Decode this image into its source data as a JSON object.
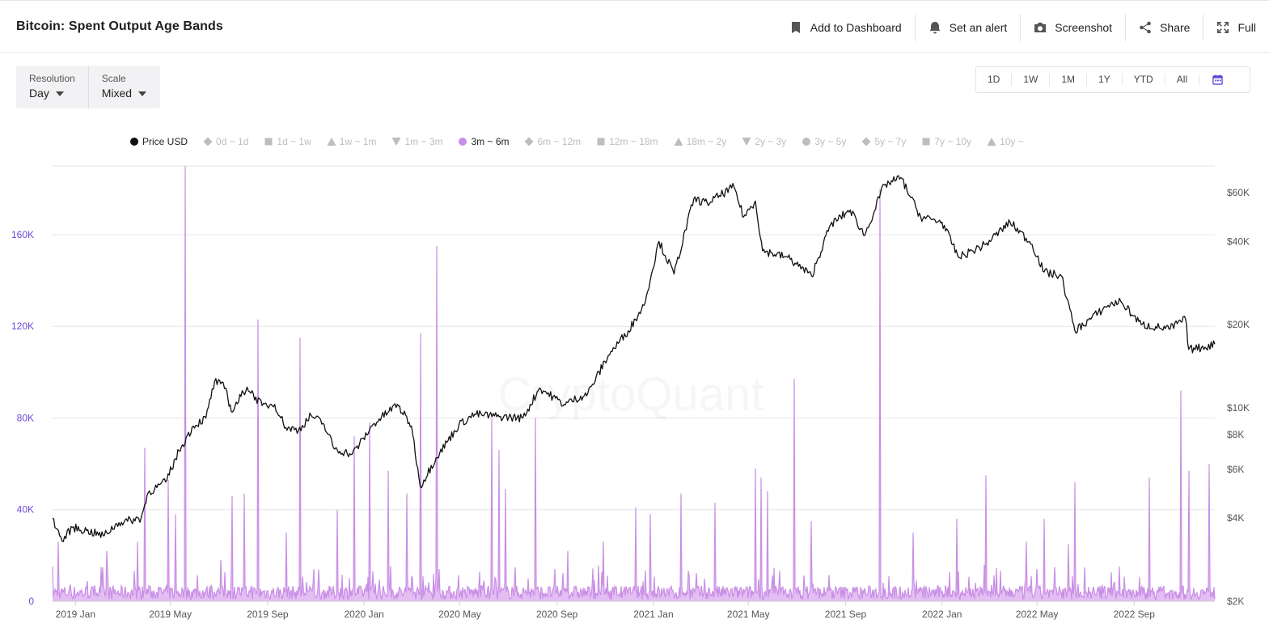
{
  "header": {
    "title": "Bitcoin: Spent Output Age Bands",
    "actions": [
      {
        "label": "Add to Dashboard",
        "icon": "bookmark-icon"
      },
      {
        "label": "Set an alert",
        "icon": "bell-icon"
      },
      {
        "label": "Screenshot",
        "icon": "camera-icon"
      },
      {
        "label": "Share",
        "icon": "share-icon"
      },
      {
        "label": "Full",
        "icon": "expand-icon"
      }
    ]
  },
  "controls": {
    "resolution": {
      "label": "Resolution",
      "value": "Day"
    },
    "scale": {
      "label": "Scale",
      "value": "Mixed"
    }
  },
  "ranges": [
    "1D",
    "1W",
    "1M",
    "1Y",
    "YTD",
    "All"
  ],
  "legend": [
    {
      "label": "Price USD",
      "shape": "circle",
      "color": "#111111",
      "active": true
    },
    {
      "label": "0d ~ 1d",
      "shape": "diamond",
      "color": "#bdbdbd",
      "active": false
    },
    {
      "label": "1d ~ 1w",
      "shape": "square",
      "color": "#bdbdbd",
      "active": false
    },
    {
      "label": "1w ~ 1m",
      "shape": "triangle",
      "color": "#bdbdbd",
      "active": false
    },
    {
      "label": "1m ~ 3m",
      "shape": "triangle-down",
      "color": "#bdbdbd",
      "active": false
    },
    {
      "label": "3m ~ 6m",
      "shape": "circle",
      "color": "#c98ee6",
      "active": true
    },
    {
      "label": "6m ~ 12m",
      "shape": "diamond",
      "color": "#bdbdbd",
      "active": false
    },
    {
      "label": "12m ~ 18m",
      "shape": "square",
      "color": "#bdbdbd",
      "active": false
    },
    {
      "label": "18m ~ 2y",
      "shape": "triangle",
      "color": "#bdbdbd",
      "active": false
    },
    {
      "label": "2y ~ 3y",
      "shape": "triangle-down",
      "color": "#bdbdbd",
      "active": false
    },
    {
      "label": "3y ~ 5y",
      "shape": "circle",
      "color": "#bdbdbd",
      "active": false
    },
    {
      "label": "5y ~ 7y",
      "shape": "diamond",
      "color": "#bdbdbd",
      "active": false
    },
    {
      "label": "7y ~ 10y",
      "shape": "square",
      "color": "#bdbdbd",
      "active": false
    },
    {
      "label": "10y ~",
      "shape": "triangle",
      "color": "#bdbdbd",
      "active": false
    }
  ],
  "colors": {
    "accent": "#6a4bd4",
    "band": "#c98ee6",
    "band_fill": "#d9a8ee",
    "price": "#111111",
    "grid": "#e6e6e6"
  },
  "chart_data": {
    "type": "line",
    "watermark": "CryptoQuant",
    "x_range": [
      "2018-12-03",
      "2022-12-12"
    ],
    "x_ticks": [
      {
        "date": "2019-01-01",
        "label": "2019 Jan"
      },
      {
        "date": "2019-05-01",
        "label": "2019 May"
      },
      {
        "date": "2019-09-01",
        "label": "2019 Sep"
      },
      {
        "date": "2020-01-01",
        "label": "2020 Jan"
      },
      {
        "date": "2020-05-01",
        "label": "2020 May"
      },
      {
        "date": "2020-09-01",
        "label": "2020 Sep"
      },
      {
        "date": "2021-01-01",
        "label": "2021 Jan"
      },
      {
        "date": "2021-05-01",
        "label": "2021 May"
      },
      {
        "date": "2021-09-01",
        "label": "2021 Sep"
      },
      {
        "date": "2022-01-01",
        "label": "2022 Jan"
      },
      {
        "date": "2022-05-01",
        "label": "2022 May"
      },
      {
        "date": "2022-09-01",
        "label": "2022 Sep"
      }
    ],
    "y_left": {
      "scale": "linear",
      "range": [
        0,
        190000
      ],
      "ticks": [
        0,
        40000,
        80000,
        120000,
        160000
      ],
      "tick_labels": [
        "0",
        "40K",
        "80K",
        "120K",
        "160K"
      ]
    },
    "y_right": {
      "scale": "log",
      "range": [
        2000,
        75000
      ],
      "ticks": [
        2000,
        4000,
        6000,
        8000,
        10000,
        20000,
        40000,
        60000
      ],
      "tick_labels": [
        "$2K",
        "$4K",
        "$6K",
        "$8K",
        "$10K",
        "$20K",
        "$40K",
        "$60K"
      ]
    },
    "series": [
      {
        "name": "Price USD",
        "axis": "right",
        "points": [
          [
            "2018-12-03",
            4000
          ],
          [
            "2018-12-15",
            3300
          ],
          [
            "2018-12-28",
            3700
          ],
          [
            "2019-01-15",
            3600
          ],
          [
            "2019-02-05",
            3450
          ],
          [
            "2019-02-25",
            3850
          ],
          [
            "2019-03-25",
            4000
          ],
          [
            "2019-04-03",
            4950
          ],
          [
            "2019-04-25",
            5400
          ],
          [
            "2019-05-12",
            7000
          ],
          [
            "2019-05-30",
            8600
          ],
          [
            "2019-06-15",
            9200
          ],
          [
            "2019-06-26",
            12500
          ],
          [
            "2019-07-10",
            11800
          ],
          [
            "2019-07-17",
            9700
          ],
          [
            "2019-08-06",
            11900
          ],
          [
            "2019-08-25",
            10200
          ],
          [
            "2019-09-10",
            10300
          ],
          [
            "2019-09-24",
            8500
          ],
          [
            "2019-10-10",
            8300
          ],
          [
            "2019-10-26",
            9400
          ],
          [
            "2019-11-10",
            8800
          ],
          [
            "2019-11-25",
            7100
          ],
          [
            "2019-12-17",
            6800
          ],
          [
            "2020-01-14",
            8800
          ],
          [
            "2020-02-12",
            10300
          ],
          [
            "2020-03-01",
            8600
          ],
          [
            "2020-03-12",
            5200
          ],
          [
            "2020-04-01",
            6600
          ],
          [
            "2020-04-30",
            8700
          ],
          [
            "2020-05-20",
            9500
          ],
          [
            "2020-06-20",
            9300
          ],
          [
            "2020-07-20",
            9200
          ],
          [
            "2020-08-10",
            11800
          ],
          [
            "2020-09-10",
            10300
          ],
          [
            "2020-10-10",
            11300
          ],
          [
            "2020-11-05",
            15500
          ],
          [
            "2020-11-30",
            19000
          ],
          [
            "2020-12-20",
            23500
          ],
          [
            "2021-01-08",
            40000
          ],
          [
            "2021-01-27",
            30500
          ],
          [
            "2021-02-21",
            57000
          ],
          [
            "2021-03-10",
            55000
          ],
          [
            "2021-04-13",
            63000
          ],
          [
            "2021-04-25",
            49000
          ],
          [
            "2021-05-10",
            56000
          ],
          [
            "2021-05-19",
            37000
          ],
          [
            "2021-06-20",
            35000
          ],
          [
            "2021-07-20",
            30000
          ],
          [
            "2021-08-13",
            46000
          ],
          [
            "2021-09-07",
            52000
          ],
          [
            "2021-09-25",
            42000
          ],
          [
            "2021-10-20",
            64000
          ],
          [
            "2021-11-10",
            68000
          ],
          [
            "2021-12-05",
            49000
          ],
          [
            "2022-01-01",
            47000
          ],
          [
            "2022-01-22",
            35000
          ],
          [
            "2022-02-25",
            39000
          ],
          [
            "2022-03-28",
            47000
          ],
          [
            "2022-04-25",
            39000
          ],
          [
            "2022-05-10",
            31000
          ],
          [
            "2022-06-01",
            30000
          ],
          [
            "2022-06-18",
            19000
          ],
          [
            "2022-07-30",
            23500
          ],
          [
            "2022-08-15",
            24300
          ],
          [
            "2022-09-10",
            20000
          ],
          [
            "2022-10-15",
            19300
          ],
          [
            "2022-11-05",
            21000
          ],
          [
            "2022-11-09",
            16300
          ],
          [
            "2022-11-25",
            16500
          ],
          [
            "2022-12-12",
            17000
          ]
        ]
      },
      {
        "name": "3m ~ 6m",
        "axis": "left",
        "spikes": [
          [
            "2018-12-10",
            26000
          ],
          [
            "2019-02-10",
            22000
          ],
          [
            "2019-03-20",
            26000
          ],
          [
            "2019-03-30",
            67000
          ],
          [
            "2019-04-28",
            53000
          ],
          [
            "2019-05-08",
            38000
          ],
          [
            "2019-05-20",
            190000
          ],
          [
            "2019-07-04",
            18000
          ],
          [
            "2019-07-18",
            46000
          ],
          [
            "2019-08-02",
            47000
          ],
          [
            "2019-08-20",
            123000
          ],
          [
            "2019-09-25",
            30000
          ],
          [
            "2019-10-12",
            115000
          ],
          [
            "2019-11-28",
            40000
          ],
          [
            "2019-12-20",
            72000
          ],
          [
            "2020-01-08",
            78000
          ],
          [
            "2020-02-01",
            57000
          ],
          [
            "2020-02-24",
            47000
          ],
          [
            "2020-03-12",
            117000
          ],
          [
            "2020-04-02",
            155000
          ],
          [
            "2020-06-10",
            80000
          ],
          [
            "2020-06-20",
            66000
          ],
          [
            "2020-06-28",
            49000
          ],
          [
            "2020-08-05",
            80000
          ],
          [
            "2020-09-15",
            22000
          ],
          [
            "2020-10-30",
            26000
          ],
          [
            "2020-12-10",
            41000
          ],
          [
            "2020-12-28",
            38000
          ],
          [
            "2021-02-05",
            47000
          ],
          [
            "2021-03-20",
            43000
          ],
          [
            "2021-05-10",
            58000
          ],
          [
            "2021-05-17",
            54000
          ],
          [
            "2021-05-25",
            48000
          ],
          [
            "2021-06-28",
            97000
          ],
          [
            "2021-07-20",
            35000
          ],
          [
            "2021-10-15",
            180000
          ],
          [
            "2021-11-25",
            30000
          ],
          [
            "2022-01-20",
            36000
          ],
          [
            "2022-02-25",
            55000
          ],
          [
            "2022-04-18",
            26000
          ],
          [
            "2022-05-10",
            36000
          ],
          [
            "2022-06-10",
            25000
          ],
          [
            "2022-06-18",
            52000
          ],
          [
            "2022-09-20",
            54000
          ],
          [
            "2022-10-30",
            92000
          ],
          [
            "2022-11-09",
            57000
          ],
          [
            "2022-12-05",
            60000
          ]
        ]
      }
    ],
    "grid": true,
    "legend_position": "top"
  }
}
